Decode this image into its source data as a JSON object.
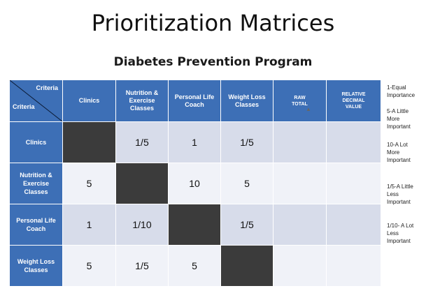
{
  "title": "Prioritization Matrices",
  "subtitle": "Diabetes Prevention Program",
  "corner": {
    "top": "Criteria",
    "bottom": "Criteria"
  },
  "columns": [
    "Clinics",
    "Nutrition &\nExercise\nClasses",
    "Personal Life\nCoach",
    "Weight Loss\nClasses",
    "RAW\nTOTAL",
    "RELATIVE\nDECIMAL\nVALUE"
  ],
  "rows": [
    {
      "label": "Clinics",
      "values": [
        "",
        "1/5",
        "1",
        "1/5",
        "",
        ""
      ]
    },
    {
      "label": "Nutrition &\nExercise\nClasses",
      "values": [
        "5",
        "",
        "10",
        "5",
        "",
        ""
      ]
    },
    {
      "label": "Personal Life\nCoach",
      "values": [
        "1",
        "1/10",
        "",
        "1/5",
        "",
        ""
      ]
    },
    {
      "label": "Weight Loss\nClasses",
      "values": [
        "5",
        "1/5",
        "5",
        "",
        "",
        ""
      ]
    }
  ],
  "legend": [
    "1-Equal\nImportance",
    "5-A Little\nMore\nImportant",
    "10-A Lot\nMore\nImportant",
    "1/5-A Little\nLess\nImportant",
    "1/10- A Lot\nLess\nImportant"
  ],
  "colors": {
    "header": "#3d6fb6",
    "diagonal": "#3b3b3b",
    "cell_light": "#f0f2f8",
    "cell_mid": "#d7dcea"
  }
}
